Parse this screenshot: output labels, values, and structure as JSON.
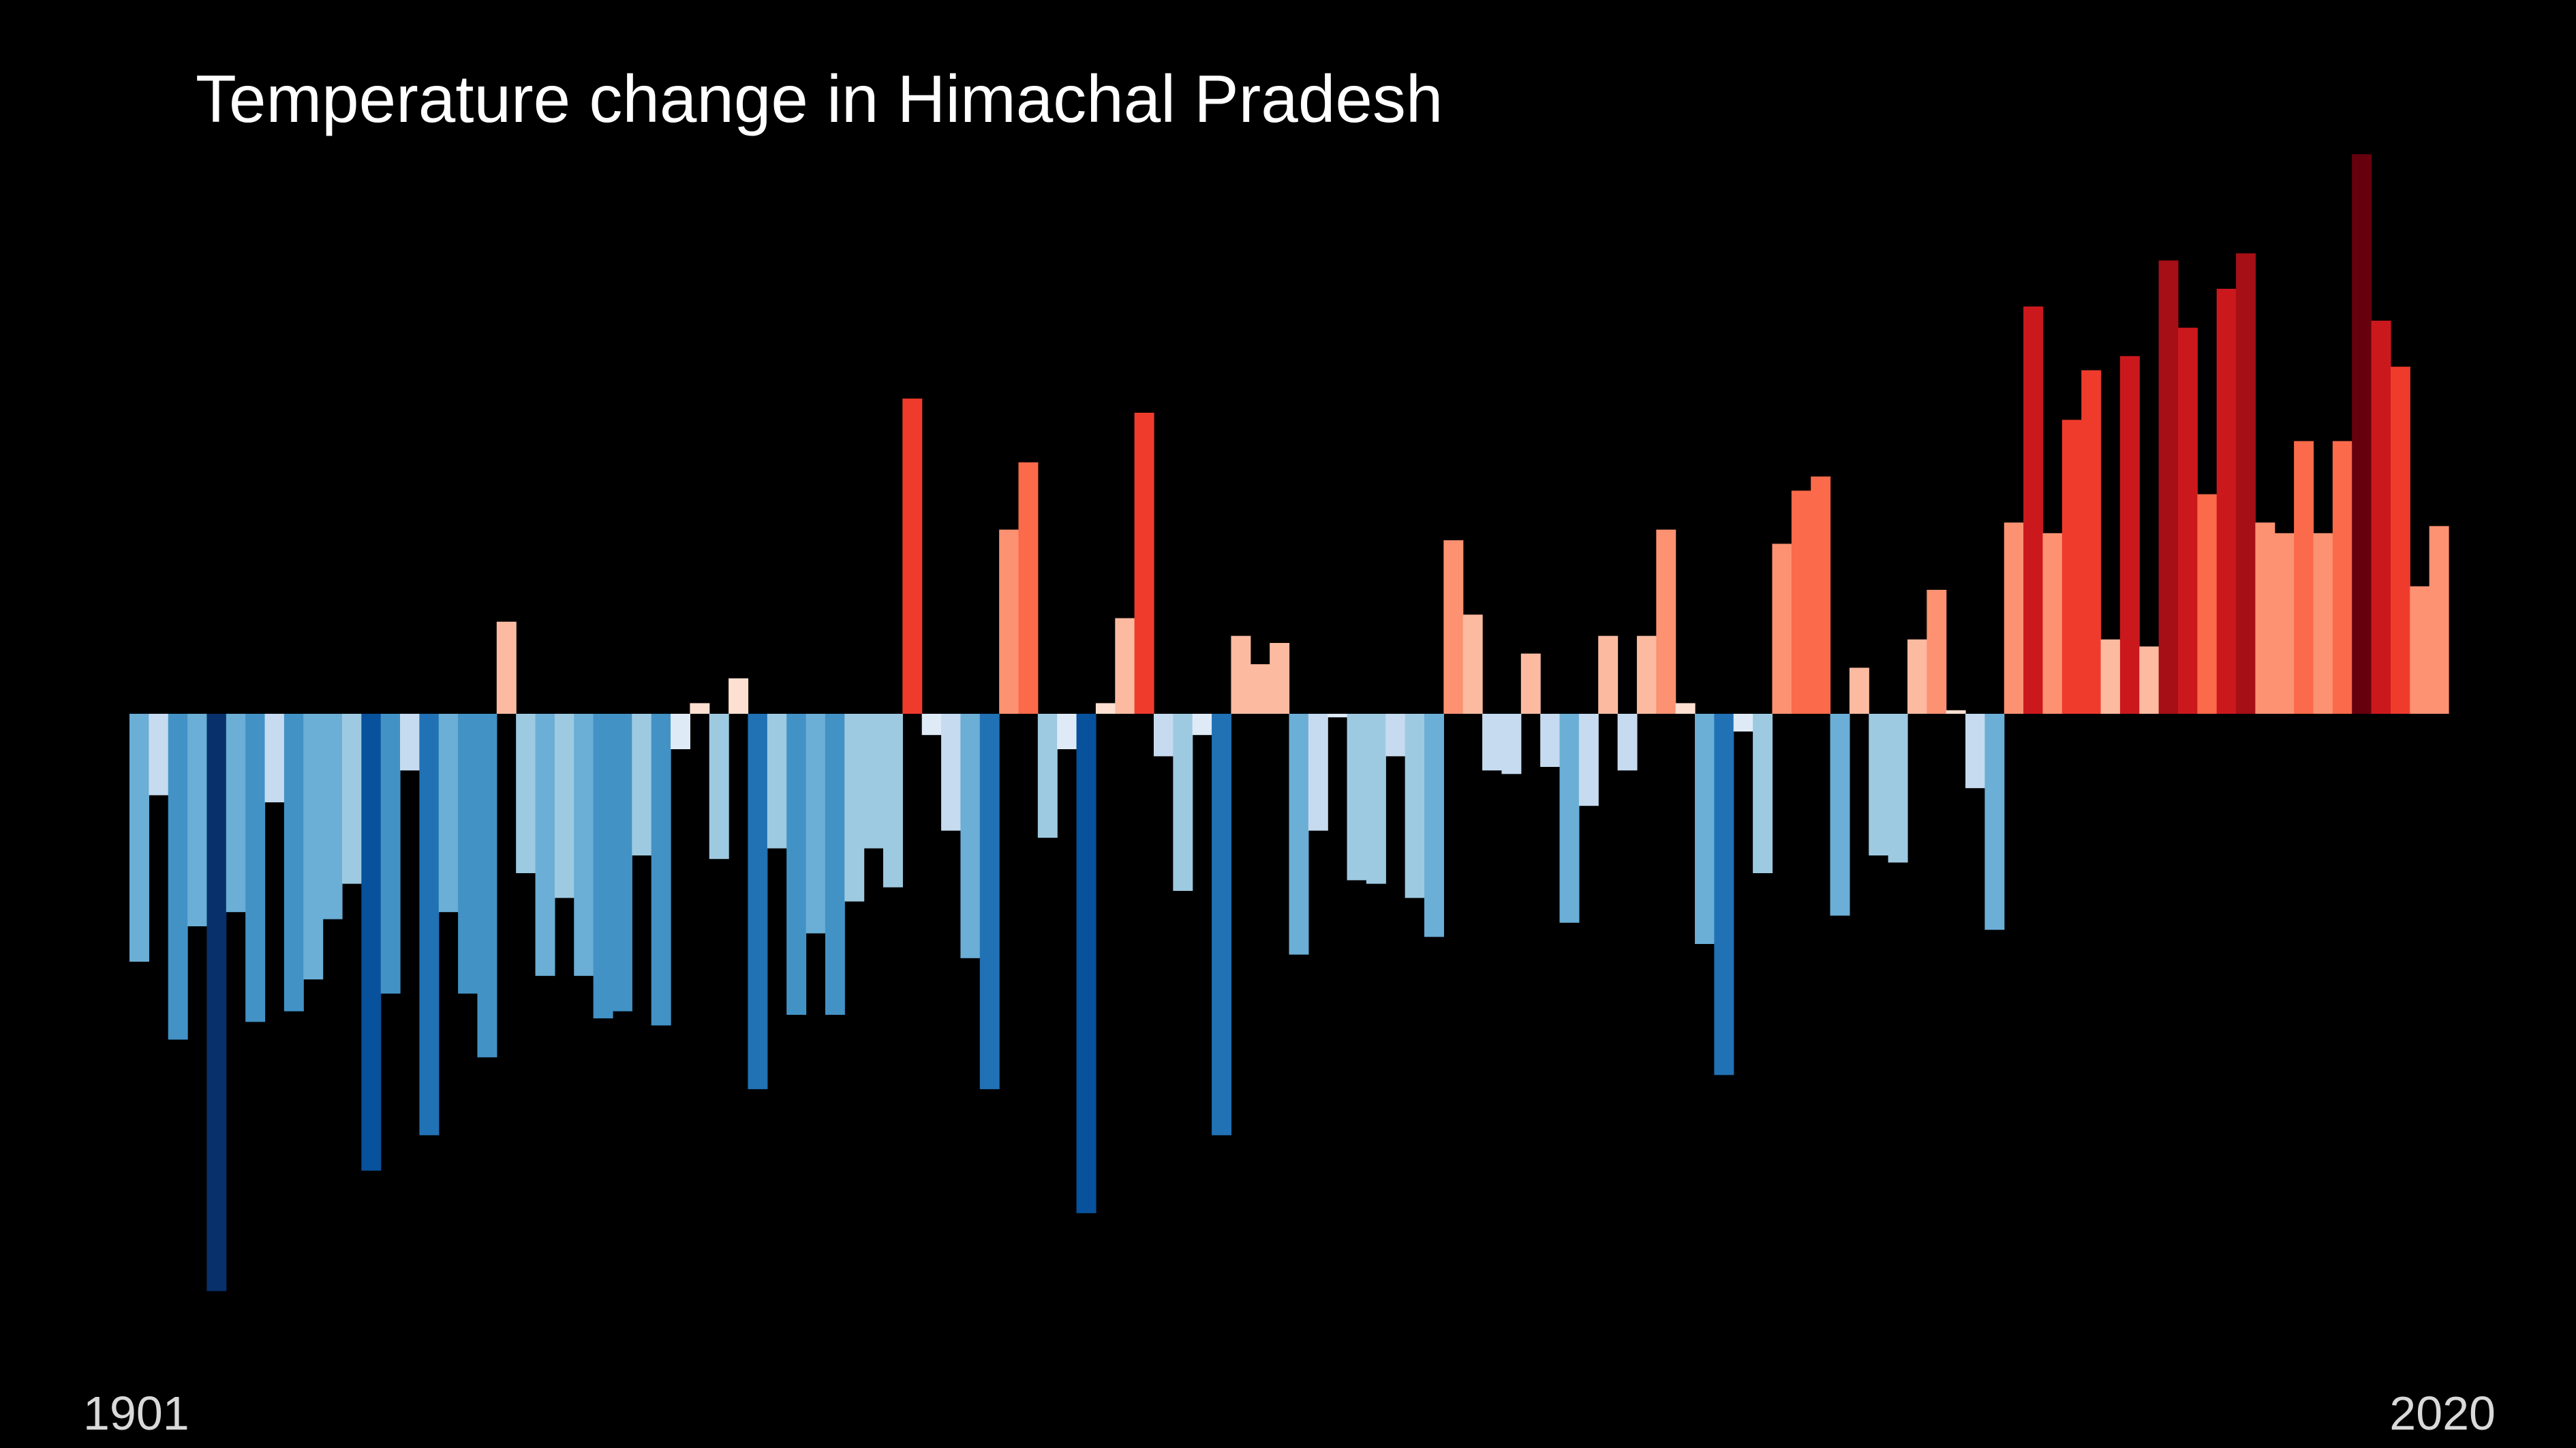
{
  "chart_data": {
    "type": "bar",
    "title": "Temperature change in Himachal Pradesh",
    "x_start_label": "1901",
    "x_end_label": "2020",
    "x_start": 1901,
    "x_end": 2020,
    "ylim": [
      -1.62,
      1.56
    ],
    "background": "#000000",
    "colors": {
      "positive": [
        "#fee0d2",
        "#fcbba1",
        "#fc9272",
        "#fb6a4a",
        "#ef3b2c",
        "#cb181d",
        "#a50f15",
        "#67000d"
      ],
      "negative": [
        "#deebf7",
        "#c6dbef",
        "#9ecae1",
        "#6baed6",
        "#4292c6",
        "#2171b5",
        "#08519c",
        "#08306b"
      ]
    },
    "values": [
      -0.7,
      -0.23,
      -0.92,
      -0.6,
      -1.63,
      -0.56,
      -0.87,
      -0.25,
      -0.84,
      -0.75,
      -0.58,
      -0.48,
      -1.29,
      -0.79,
      -0.16,
      -1.19,
      -0.56,
      -0.79,
      -0.97,
      0.26,
      -0.45,
      -0.74,
      -0.52,
      -0.74,
      -0.86,
      -0.84,
      -0.4,
      -0.88,
      -0.1,
      0.03,
      -0.41,
      0.1,
      -1.06,
      -0.38,
      -0.85,
      -0.62,
      -0.85,
      -0.53,
      -0.38,
      -0.49,
      0.89,
      -0.06,
      -0.33,
      -0.69,
      -1.06,
      0.52,
      0.71,
      -0.35,
      -0.1,
      -1.41,
      0.03,
      0.27,
      0.85,
      -0.12,
      -0.5,
      -0.06,
      -1.19,
      0.22,
      0.14,
      0.2,
      -0.68,
      -0.33,
      -0.01,
      -0.47,
      -0.48,
      -0.12,
      -0.52,
      -0.63,
      0.49,
      0.28,
      -0.16,
      -0.17,
      0.17,
      -0.15,
      -0.59,
      -0.26,
      0.22,
      -0.16,
      0.22,
      0.52,
      0.03,
      -0.65,
      -1.02,
      -0.05,
      -0.45,
      0.48,
      0.63,
      0.67,
      -0.57,
      0.13,
      -0.4,
      -0.42,
      0.21,
      0.35,
      0.01,
      -0.21,
      -0.61,
      0.54,
      1.15,
      0.51,
      0.83,
      0.97,
      0.21,
      1.01,
      0.19,
      1.28,
      1.09,
      0.62,
      1.2,
      1.3,
      0.54,
      0.51,
      0.77,
      0.51,
      0.77,
      1.58,
      1.11,
      0.98,
      0.36,
      0.53
    ]
  }
}
